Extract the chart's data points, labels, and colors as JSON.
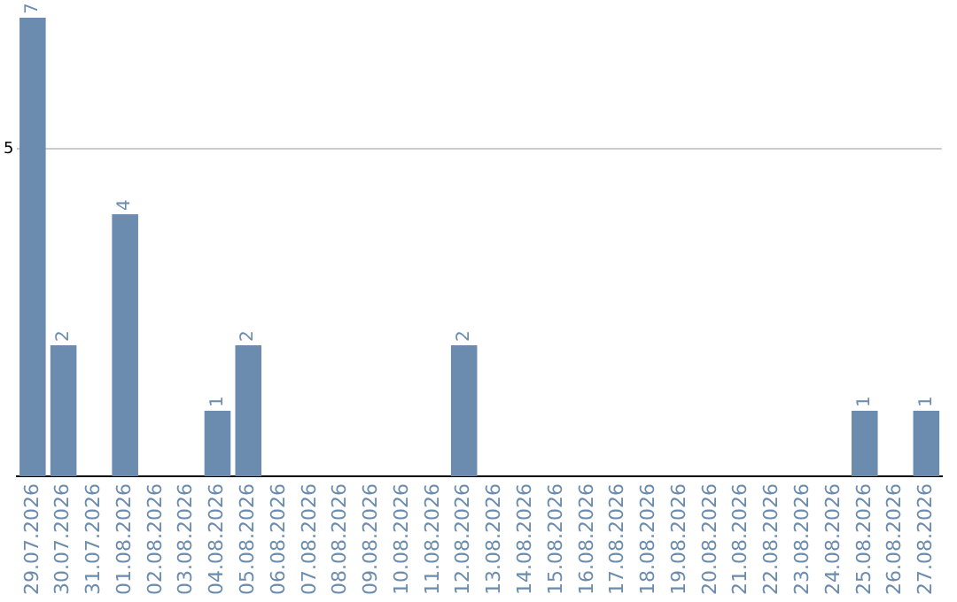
{
  "chart_data": {
    "type": "bar",
    "categories": [
      "29.07.2026",
      "30.07.2026",
      "31.07.2026",
      "01.08.2026",
      "02.08.2026",
      "03.08.2026",
      "04.08.2026",
      "05.08.2026",
      "06.08.2026",
      "07.08.2026",
      "08.08.2026",
      "09.08.2026",
      "10.08.2026",
      "11.08.2026",
      "12.08.2026",
      "13.08.2026",
      "14.08.2026",
      "15.08.2026",
      "16.08.2026",
      "17.08.2026",
      "18.08.2026",
      "19.08.2026",
      "20.08.2026",
      "21.08.2026",
      "22.08.2026",
      "23.08.2026",
      "24.08.2026",
      "25.08.2026",
      "26.08.2026",
      "27.08.2026"
    ],
    "values": [
      7,
      2,
      0,
      4,
      0,
      0,
      1,
      2,
      0,
      0,
      0,
      0,
      0,
      0,
      2,
      0,
      0,
      0,
      0,
      0,
      0,
      0,
      0,
      0,
      0,
      0,
      0,
      1,
      0,
      1
    ],
    "value_labels": [
      "7",
      "2",
      null,
      "4",
      null,
      null,
      "1",
      "2",
      null,
      null,
      null,
      null,
      null,
      null,
      "2",
      null,
      null,
      null,
      null,
      null,
      null,
      null,
      null,
      null,
      null,
      null,
      null,
      "1",
      null,
      "1"
    ],
    "color": "#6b8cae",
    "ylim": [
      0,
      7
    ],
    "yticks": [
      5
    ],
    "grid": "y"
  }
}
